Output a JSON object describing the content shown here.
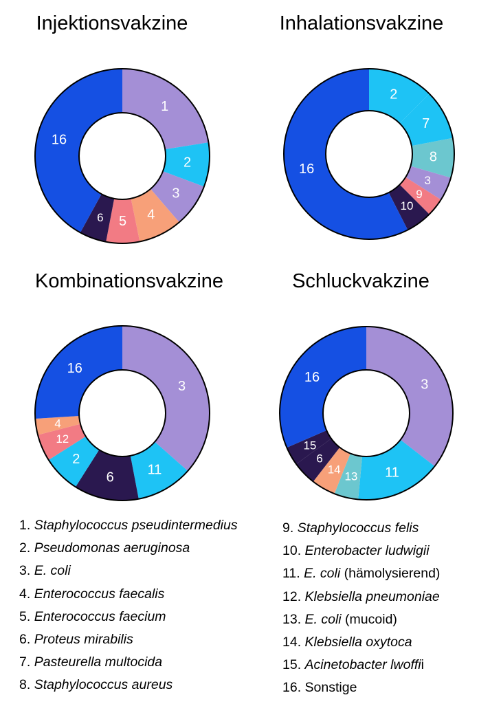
{
  "palette": {
    "1": "#a48fd6",
    "2": "#1ec3f5",
    "3": "#a48fd6",
    "4": "#f7a079",
    "5": "#f27b84",
    "6": "#2a184f",
    "7": "#1ec3f5",
    "8": "#6cc7cf",
    "9": "#f27b84",
    "10": "#2a184f",
    "11": "#1ec3f5",
    "12": "#f27b84",
    "13": "#6cc7cf",
    "14": "#f7a079",
    "15": "#2a184f",
    "16": "#1550e3"
  },
  "chart_data": [
    {
      "type": "pie",
      "title": "Injektionsvakzine",
      "slices": [
        {
          "label": "1",
          "value": 22.5
        },
        {
          "label": "2",
          "value": 8.2
        },
        {
          "label": "3",
          "value": 8.0
        },
        {
          "label": "4",
          "value": 8.1
        },
        {
          "label": "5",
          "value": 6.2
        },
        {
          "label": "6",
          "value": 5.0
        },
        {
          "label": "16",
          "value": 42.0
        }
      ]
    },
    {
      "type": "pie",
      "title": "Inhalationsvakzine",
      "slices": [
        {
          "label": "2",
          "value": 12.5
        },
        {
          "label": "7",
          "value": 9.5
        },
        {
          "label": "8",
          "value": 7.5
        },
        {
          "label": "3",
          "value": 4.5
        },
        {
          "label": "9",
          "value": 3.5
        },
        {
          "label": "10",
          "value": 5.0
        },
        {
          "label": "16",
          "value": 57.5
        }
      ]
    },
    {
      "type": "pie",
      "title": "Kombinationsvakzine",
      "slices": [
        {
          "label": "3",
          "value": 36.5
        },
        {
          "label": "11",
          "value": 10.5
        },
        {
          "label": "6",
          "value": 12.0
        },
        {
          "label": "2",
          "value": 7.0
        },
        {
          "label": "12",
          "value": 5.0
        },
        {
          "label": "4",
          "value": 3.0
        },
        {
          "label": "16",
          "value": 26.0
        }
      ]
    },
    {
      "type": "pie",
      "title": "Schluckvakzine",
      "slices": [
        {
          "label": "3",
          "value": 35.5
        },
        {
          "label": "11",
          "value": 16.0
        },
        {
          "label": "13",
          "value": 4.5
        },
        {
          "label": "14",
          "value": 4.5
        },
        {
          "label": "6",
          "value": 4.5
        },
        {
          "label": "15",
          "value": 3.5
        },
        {
          "label": "16",
          "value": 31.5
        }
      ]
    }
  ],
  "legend": [
    {
      "num": "1.",
      "species": "Staphylococcus pseudintermedius",
      "suffix": ""
    },
    {
      "num": "2.",
      "species": "Pseudomonas aeruginosa",
      "suffix": ""
    },
    {
      "num": "3.",
      "species": "E. coli",
      "suffix": ""
    },
    {
      "num": "4.",
      "species": "Enterococcus faecalis",
      "suffix": ""
    },
    {
      "num": "5.",
      "species": "Enterococcus faecium",
      "suffix": ""
    },
    {
      "num": "6.",
      "species": "Proteus mirabilis",
      "suffix": ""
    },
    {
      "num": "7.",
      "species": "Pasteurella multocida",
      "suffix": ""
    },
    {
      "num": "8.",
      "species": "Staphylococcus aureus",
      "suffix": ""
    },
    {
      "num": "9.",
      "species": "Staphylococcus felis",
      "suffix": ""
    },
    {
      "num": "10.",
      "species": "Enterobacter ludwigii",
      "suffix": ""
    },
    {
      "num": "11.",
      "species": "E. coli",
      "suffix": " (hämolysierend)"
    },
    {
      "num": "12.",
      "species": "Klebsiella pneumoniae",
      "suffix": ""
    },
    {
      "num": "13.",
      "species": "E. coli",
      "suffix": " (mucoid)"
    },
    {
      "num": "14.",
      "species": "Klebsiella oxytoca",
      "suffix": ""
    },
    {
      "num": "15.",
      "species": "Acinetobacter lwoffi",
      "suffix": "i"
    },
    {
      "num": "16.",
      "species": "",
      "suffix": "Sonstige"
    }
  ]
}
